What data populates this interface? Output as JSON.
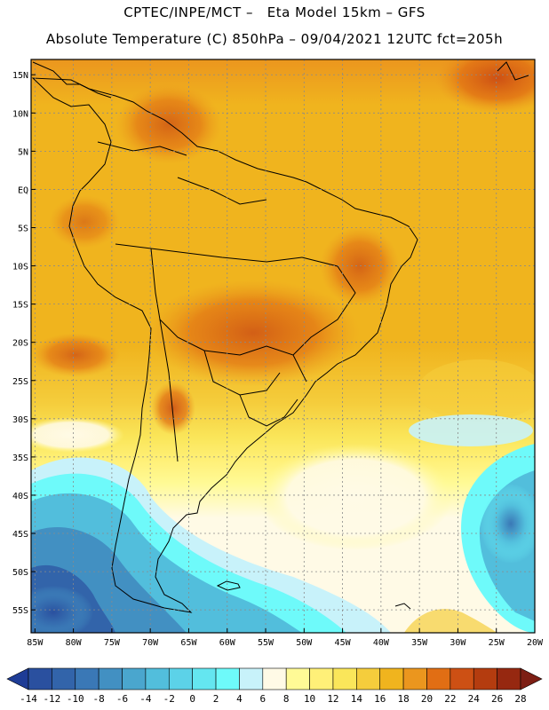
{
  "header": {
    "line1": "CPTEC/INPE/MCT –   Eta Model 15km – GFS",
    "line2": "Absolute Temperature (C) 850hPa – 09/04/2021 12UTC fct=205h"
  },
  "map": {
    "lat_labels": [
      "15N",
      "10N",
      "5N",
      "EQ",
      "5S",
      "10S",
      "15S",
      "20S",
      "25S",
      "30S",
      "35S",
      "40S",
      "45S",
      "50S",
      "55S"
    ],
    "lon_labels": [
      "85W",
      "80W",
      "75W",
      "70W",
      "65W",
      "60W",
      "55W",
      "50W",
      "45W",
      "40W",
      "35W",
      "30W",
      "25W",
      "20W"
    ],
    "lat_values": [
      15,
      10,
      5,
      0,
      -5,
      -10,
      -15,
      -20,
      -25,
      -30,
      -35,
      -40,
      -45,
      -50,
      -55
    ],
    "lon_values": [
      -85,
      -80,
      -75,
      -70,
      -65,
      -60,
      -55,
      -50,
      -45,
      -40,
      -35,
      -30,
      -25,
      -20
    ],
    "extent": {
      "lon_min": -85.5,
      "lon_max": -20,
      "lat_min": -58,
      "lat_max": 17
    }
  },
  "colorbar": {
    "labels": [
      "-14",
      "-12",
      "-10",
      "-8",
      "-6",
      "-4",
      "-2",
      "0",
      "2",
      "4",
      "6",
      "8",
      "10",
      "12",
      "14",
      "16",
      "18",
      "20",
      "22",
      "24",
      "26",
      "28"
    ],
    "colors": [
      "#1e3c96",
      "#2a509f",
      "#3264aa",
      "#3a78b6",
      "#4290c2",
      "#4aa6ce",
      "#52bedc",
      "#5cd2e8",
      "#64e6f0",
      "#6efafa",
      "#c8f2fa",
      "#fffae6",
      "#fffa96",
      "#fff078",
      "#fae65a",
      "#f5cd3c",
      "#f0b41e",
      "#eb961e",
      "#e16e14",
      "#cd5014",
      "#b43c0f",
      "#962810",
      "#7d1e14"
    ]
  }
}
